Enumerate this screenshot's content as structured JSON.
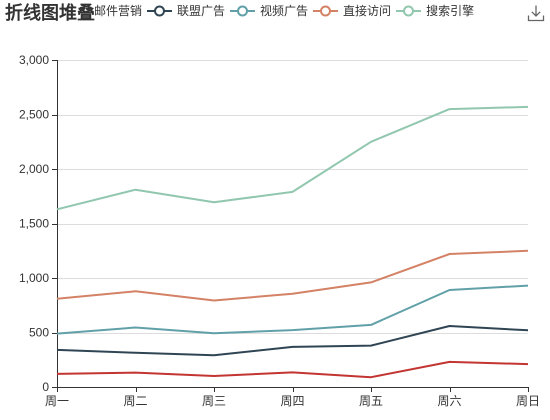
{
  "chart_data": {
    "type": "line",
    "stacked": true,
    "title": "折线图堆叠",
    "categories": [
      "周一",
      "周二",
      "周三",
      "周四",
      "周五",
      "周六",
      "周日"
    ],
    "series": [
      {
        "name": "邮件营销",
        "values": [
          120,
          132,
          101,
          134,
          90,
          230,
          210
        ],
        "color": "#c23531"
      },
      {
        "name": "联盟广告",
        "values": [
          220,
          182,
          191,
          234,
          290,
          330,
          310
        ],
        "color": "#2f4554"
      },
      {
        "name": "视频广告",
        "values": [
          150,
          232,
          201,
          154,
          190,
          330,
          410
        ],
        "color": "#61a0a8"
      },
      {
        "name": "直接访问",
        "values": [
          320,
          332,
          301,
          334,
          390,
          330,
          320
        ],
        "color": "#d48265"
      },
      {
        "name": "搜索引擎",
        "values": [
          820,
          932,
          901,
          934,
          1290,
          1330,
          1320
        ],
        "color": "#91c7ae"
      }
    ],
    "ylim": [
      0,
      3000
    ],
    "y_ticks": [
      0,
      500,
      1000,
      1500,
      2000,
      2500,
      3000
    ],
    "y_tick_labels": [
      "0",
      "500",
      "1,000",
      "1,500",
      "2,000",
      "2,500",
      "3,000"
    ],
    "grid": true,
    "legend_placement": "top"
  },
  "toolbar": {
    "download_icon": "download-icon"
  }
}
